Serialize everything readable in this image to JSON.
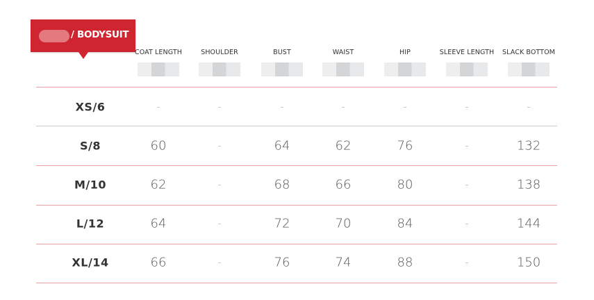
{
  "title_suffix": "/ BODYSUIT",
  "accent_color": "#cf2530",
  "columns": [
    "COAT LENGTH",
    "SHOULDER",
    "BUST",
    "WAIST",
    "HIP",
    "SLEEVE LENGTH",
    "SLACK BOTTOM"
  ],
  "rows": [
    {
      "size": "XS/6",
      "values": [
        "-",
        "-",
        "-",
        "-",
        "-",
        "-",
        "-"
      ]
    },
    {
      "size": "S/8",
      "values": [
        "60",
        "-",
        "64",
        "62",
        "76",
        "-",
        "132"
      ]
    },
    {
      "size": "M/10",
      "values": [
        "62",
        "-",
        "68",
        "66",
        "80",
        "-",
        "138"
      ]
    },
    {
      "size": "L/12",
      "values": [
        "64",
        "-",
        "72",
        "70",
        "84",
        "-",
        "144"
      ]
    },
    {
      "size": "XL/14",
      "values": [
        "66",
        "-",
        "76",
        "74",
        "88",
        "-",
        "150"
      ]
    }
  ]
}
